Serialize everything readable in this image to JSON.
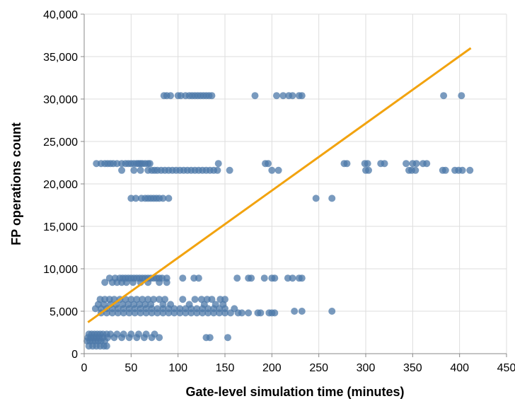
{
  "chart_data": {
    "type": "scatter",
    "title": "",
    "xlabel": "Gate-level simulation time (minutes)",
    "ylabel": "FP operations count",
    "xlim": [
      0,
      450
    ],
    "ylim": [
      0,
      40000
    ],
    "x_ticks": [
      "0",
      "50",
      "100",
      "150",
      "200",
      "250",
      "300",
      "350",
      "400",
      "450"
    ],
    "y_ticks": [
      "0",
      "5,000",
      "10,000",
      "15,000",
      "20,000",
      "25,000",
      "30,000",
      "35,000",
      "40,000"
    ],
    "grid": true,
    "point_color": "#4c78a8",
    "line_color": "#f2a30f",
    "series": [
      {
        "type": "scatter",
        "points": [
          [
            85,
            30400
          ],
          [
            88,
            30400
          ],
          [
            92,
            30400
          ],
          [
            100,
            30400
          ],
          [
            103,
            30400
          ],
          [
            108,
            30400
          ],
          [
            112,
            30400
          ],
          [
            115,
            30400
          ],
          [
            118,
            30400
          ],
          [
            121,
            30400
          ],
          [
            124,
            30400
          ],
          [
            127,
            30400
          ],
          [
            130,
            30400
          ],
          [
            133,
            30400
          ],
          [
            136,
            30400
          ],
          [
            182,
            30400
          ],
          [
            205,
            30400
          ],
          [
            212,
            30400
          ],
          [
            218,
            30400
          ],
          [
            222,
            30400
          ],
          [
            229,
            30400
          ],
          [
            232,
            30400
          ],
          [
            383,
            30400
          ],
          [
            402,
            30400
          ],
          [
            13,
            22400
          ],
          [
            18,
            22400
          ],
          [
            22,
            22400
          ],
          [
            25,
            22400
          ],
          [
            28,
            22400
          ],
          [
            31,
            22400
          ],
          [
            35,
            22400
          ],
          [
            40,
            22400
          ],
          [
            44,
            22400
          ],
          [
            47,
            22400
          ],
          [
            50,
            22400
          ],
          [
            53,
            22400
          ],
          [
            56,
            22400
          ],
          [
            58,
            22400
          ],
          [
            60,
            22400
          ],
          [
            62,
            22400
          ],
          [
            65,
            22400
          ],
          [
            68,
            22400
          ],
          [
            70,
            22400
          ],
          [
            143,
            22400
          ],
          [
            193,
            22400
          ],
          [
            196,
            22400
          ],
          [
            277,
            22400
          ],
          [
            280,
            22400
          ],
          [
            299,
            22400
          ],
          [
            302,
            22400
          ],
          [
            316,
            22400
          ],
          [
            320,
            22400
          ],
          [
            343,
            22400
          ],
          [
            350,
            22400
          ],
          [
            354,
            22400
          ],
          [
            361,
            22400
          ],
          [
            365,
            22400
          ],
          [
            40,
            21600
          ],
          [
            53,
            21600
          ],
          [
            60,
            21600
          ],
          [
            68,
            21600
          ],
          [
            72,
            21600
          ],
          [
            75,
            21600
          ],
          [
            78,
            21600
          ],
          [
            82,
            21600
          ],
          [
            86,
            21600
          ],
          [
            90,
            21600
          ],
          [
            94,
            21600
          ],
          [
            98,
            21600
          ],
          [
            102,
            21600
          ],
          [
            106,
            21600
          ],
          [
            110,
            21600
          ],
          [
            114,
            21600
          ],
          [
            118,
            21600
          ],
          [
            122,
            21600
          ],
          [
            126,
            21600
          ],
          [
            130,
            21600
          ],
          [
            134,
            21600
          ],
          [
            138,
            21600
          ],
          [
            142,
            21600
          ],
          [
            155,
            21600
          ],
          [
            200,
            21600
          ],
          [
            207,
            21600
          ],
          [
            300,
            21600
          ],
          [
            303,
            21600
          ],
          [
            346,
            21600
          ],
          [
            349,
            21600
          ],
          [
            353,
            21600
          ],
          [
            382,
            21600
          ],
          [
            385,
            21600
          ],
          [
            395,
            21600
          ],
          [
            399,
            21600
          ],
          [
            403,
            21600
          ],
          [
            411,
            21600
          ],
          [
            50,
            18300
          ],
          [
            55,
            18300
          ],
          [
            61,
            18300
          ],
          [
            65,
            18300
          ],
          [
            68,
            18300
          ],
          [
            71,
            18300
          ],
          [
            74,
            18300
          ],
          [
            77,
            18300
          ],
          [
            80,
            18300
          ],
          [
            84,
            18300
          ],
          [
            90,
            18300
          ],
          [
            247,
            18300
          ],
          [
            264,
            18300
          ],
          [
            27,
            8900
          ],
          [
            33,
            8900
          ],
          [
            38,
            8900
          ],
          [
            41,
            8900
          ],
          [
            44,
            8900
          ],
          [
            47,
            8900
          ],
          [
            50,
            8900
          ],
          [
            53,
            8900
          ],
          [
            56,
            8900
          ],
          [
            59,
            8900
          ],
          [
            62,
            8900
          ],
          [
            65,
            8900
          ],
          [
            68,
            8900
          ],
          [
            71,
            8900
          ],
          [
            74,
            8900
          ],
          [
            77,
            8900
          ],
          [
            80,
            8900
          ],
          [
            83,
            8900
          ],
          [
            88,
            8900
          ],
          [
            105,
            8900
          ],
          [
            117,
            8900
          ],
          [
            122,
            8900
          ],
          [
            163,
            8900
          ],
          [
            175,
            8900
          ],
          [
            178,
            8900
          ],
          [
            192,
            8900
          ],
          [
            200,
            8900
          ],
          [
            203,
            8900
          ],
          [
            217,
            8900
          ],
          [
            222,
            8900
          ],
          [
            229,
            8900
          ],
          [
            232,
            8900
          ],
          [
            22,
            8400
          ],
          [
            30,
            8400
          ],
          [
            35,
            8400
          ],
          [
            40,
            8400
          ],
          [
            45,
            8400
          ],
          [
            52,
            8400
          ],
          [
            60,
            8400
          ],
          [
            68,
            8400
          ],
          [
            80,
            8400
          ],
          [
            88,
            8400
          ],
          [
            17,
            6400
          ],
          [
            22,
            6400
          ],
          [
            27,
            6400
          ],
          [
            32,
            6400
          ],
          [
            38,
            6400
          ],
          [
            44,
            6400
          ],
          [
            50,
            6400
          ],
          [
            56,
            6400
          ],
          [
            62,
            6400
          ],
          [
            68,
            6400
          ],
          [
            74,
            6400
          ],
          [
            80,
            6400
          ],
          [
            86,
            6400
          ],
          [
            105,
            6400
          ],
          [
            118,
            6400
          ],
          [
            125,
            6400
          ],
          [
            131,
            6400
          ],
          [
            136,
            6400
          ],
          [
            145,
            6400
          ],
          [
            150,
            6400
          ],
          [
            15,
            5800
          ],
          [
            21,
            5800
          ],
          [
            28,
            5800
          ],
          [
            34,
            5800
          ],
          [
            41,
            5800
          ],
          [
            47,
            5800
          ],
          [
            53,
            5800
          ],
          [
            59,
            5800
          ],
          [
            65,
            5800
          ],
          [
            71,
            5800
          ],
          [
            84,
            5800
          ],
          [
            92,
            5800
          ],
          [
            112,
            5800
          ],
          [
            128,
            5800
          ],
          [
            140,
            5800
          ],
          [
            148,
            5800
          ],
          [
            12,
            5300
          ],
          [
            18,
            5300
          ],
          [
            24,
            5300
          ],
          [
            30,
            5300
          ],
          [
            36,
            5300
          ],
          [
            42,
            5300
          ],
          [
            48,
            5300
          ],
          [
            54,
            5300
          ],
          [
            60,
            5300
          ],
          [
            66,
            5300
          ],
          [
            72,
            5300
          ],
          [
            78,
            5300
          ],
          [
            84,
            5300
          ],
          [
            90,
            5300
          ],
          [
            96,
            5300
          ],
          [
            102,
            5300
          ],
          [
            108,
            5300
          ],
          [
            114,
            5300
          ],
          [
            120,
            5300
          ],
          [
            126,
            5300
          ],
          [
            132,
            5300
          ],
          [
            138,
            5300
          ],
          [
            144,
            5300
          ],
          [
            150,
            5300
          ],
          [
            160,
            5300
          ],
          [
            18,
            4800
          ],
          [
            24,
            4800
          ],
          [
            30,
            4800
          ],
          [
            36,
            4800
          ],
          [
            42,
            4800
          ],
          [
            48,
            4800
          ],
          [
            54,
            4800
          ],
          [
            60,
            4800
          ],
          [
            66,
            4800
          ],
          [
            72,
            4800
          ],
          [
            78,
            4800
          ],
          [
            84,
            4800
          ],
          [
            90,
            4800
          ],
          [
            96,
            4800
          ],
          [
            102,
            4800
          ],
          [
            108,
            4800
          ],
          [
            114,
            4800
          ],
          [
            120,
            4800
          ],
          [
            126,
            4800
          ],
          [
            132,
            4800
          ],
          [
            138,
            4800
          ],
          [
            144,
            4800
          ],
          [
            150,
            4800
          ],
          [
            156,
            4800
          ],
          [
            164,
            4800
          ],
          [
            168,
            4800
          ],
          [
            175,
            4800
          ],
          [
            185,
            4800
          ],
          [
            188,
            4800
          ],
          [
            197,
            4800
          ],
          [
            200,
            4800
          ],
          [
            203,
            4800
          ],
          [
            224,
            5000
          ],
          [
            232,
            5000
          ],
          [
            264,
            5000
          ],
          [
            5,
            2300
          ],
          [
            8,
            2300
          ],
          [
            11,
            2300
          ],
          [
            14,
            2300
          ],
          [
            17,
            2300
          ],
          [
            20,
            2300
          ],
          [
            24,
            2300
          ],
          [
            28,
            2300
          ],
          [
            35,
            2300
          ],
          [
            42,
            2300
          ],
          [
            50,
            2300
          ],
          [
            58,
            2300
          ],
          [
            66,
            2300
          ],
          [
            75,
            2300
          ],
          [
            4,
            1900
          ],
          [
            7,
            1900
          ],
          [
            10,
            1900
          ],
          [
            13,
            1900
          ],
          [
            16,
            1900
          ],
          [
            20,
            1900
          ],
          [
            25,
            1900
          ],
          [
            32,
            1900
          ],
          [
            40,
            1900
          ],
          [
            48,
            1900
          ],
          [
            56,
            1900
          ],
          [
            64,
            1900
          ],
          [
            72,
            1900
          ],
          [
            80,
            1900
          ],
          [
            130,
            1900
          ],
          [
            134,
            1900
          ],
          [
            153,
            1900
          ],
          [
            3,
            1500
          ],
          [
            6,
            1500
          ],
          [
            9,
            1500
          ],
          [
            12,
            1500
          ],
          [
            15,
            1500
          ],
          [
            18,
            1500
          ],
          [
            22,
            1500
          ],
          [
            5,
            900
          ],
          [
            9,
            900
          ],
          [
            13,
            900
          ],
          [
            17,
            900
          ],
          [
            21,
            900
          ],
          [
            24,
            900
          ]
        ]
      },
      {
        "type": "line",
        "points": [
          [
            4,
            3700
          ],
          [
            412,
            36000
          ]
        ]
      }
    ]
  }
}
